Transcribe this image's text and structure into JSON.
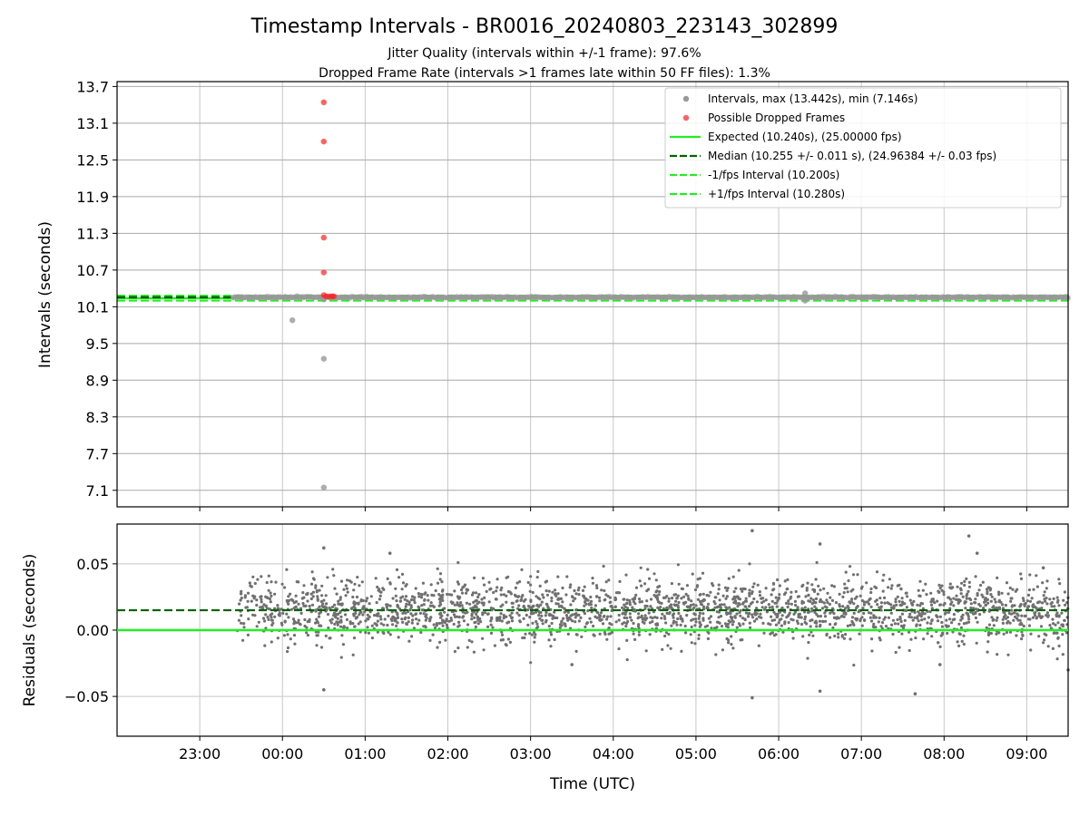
{
  "figure": {
    "title": "Timestamp Intervals - BR0016_20240803_223143_302899",
    "subtitle_1": "Jitter Quality (intervals within +/-1 frame): 97.6%",
    "subtitle_2": "Dropped Frame Rate (intervals >1 frames late within 50 FF files): 1.3%"
  },
  "colors": {
    "intervals": "#999999",
    "dropped": "#ff2020",
    "expected": "#22ee22",
    "median": "#006400",
    "residuals": "#707070"
  },
  "chart_data": [
    {
      "type": "scatter",
      "panel": "intervals",
      "xlabel": "",
      "ylabel": "Intervals (seconds)",
      "x_range_hours": [
        -2.0,
        9.5
      ],
      "ylim": [
        6.83,
        13.78
      ],
      "y_ticks": [
        7.1,
        7.7,
        8.3,
        8.9,
        9.5,
        10.1,
        10.7,
        11.3,
        11.9,
        12.5,
        13.1,
        13.7
      ],
      "y_tick_labels": [
        "7.1",
        "7.7",
        "8.3",
        "8.9",
        "9.5",
        "10.1",
        "10.7",
        "11.3",
        "11.9",
        "12.5",
        "13.1",
        "13.7"
      ],
      "grid": true,
      "legend_position": "top-right",
      "legend": [
        {
          "key": "intervals",
          "label": "Intervals, max (13.442s), min (7.146s)"
        },
        {
          "key": "dropped",
          "label": "Possible Dropped Frames"
        },
        {
          "key": "expected",
          "label": "Expected (10.240s), (25.00000 fps)"
        },
        {
          "key": "median",
          "label": "Median (10.255 +/- 0.011 s), (24.96384 +/- 0.03 fps)"
        },
        {
          "key": "minus",
          "label": "-1/fps Interval (10.200s)"
        },
        {
          "key": "plus",
          "label": "+1/fps Interval (10.280s)"
        }
      ],
      "lines": {
        "expected": 10.24,
        "median": 10.255,
        "minus_fps": 10.2,
        "plus_fps": 10.28
      },
      "series_start_hour": -0.6,
      "series_end_hour": 9.5,
      "baseline": 10.255,
      "outliers": [
        {
          "hour": 0.12,
          "value": 9.88,
          "kind": "interval"
        },
        {
          "hour": 0.5,
          "value": 9.25,
          "kind": "interval"
        },
        {
          "hour": 0.5,
          "value": 7.146,
          "kind": "interval"
        },
        {
          "hour": 0.5,
          "value": 10.22,
          "kind": "interval"
        },
        {
          "hour": 6.32,
          "value": 10.32,
          "kind": "interval"
        },
        {
          "hour": 6.32,
          "value": 10.2,
          "kind": "interval"
        },
        {
          "hour": 0.5,
          "value": 13.442,
          "kind": "dropped"
        },
        {
          "hour": 0.5,
          "value": 12.8,
          "kind": "dropped"
        },
        {
          "hour": 0.5,
          "value": 11.23,
          "kind": "dropped"
        },
        {
          "hour": 0.5,
          "value": 10.66,
          "kind": "dropped"
        },
        {
          "hour": 0.5,
          "value": 10.29,
          "kind": "dropped"
        },
        {
          "hour": 0.53,
          "value": 10.27,
          "kind": "dropped"
        },
        {
          "hour": 0.57,
          "value": 10.27,
          "kind": "dropped"
        },
        {
          "hour": 0.6,
          "value": 10.27,
          "kind": "dropped"
        },
        {
          "hour": 0.62,
          "value": 10.27,
          "kind": "dropped"
        }
      ]
    },
    {
      "type": "scatter",
      "panel": "residuals",
      "xlabel": "Time (UTC)",
      "ylabel": "Residuals (seconds)",
      "x_range_hours": [
        -2.0,
        9.5
      ],
      "ylim": [
        -0.08,
        0.08
      ],
      "y_ticks": [
        -0.05,
        0.0,
        0.05
      ],
      "y_tick_labels": [
        "−0.05",
        "0.00",
        "0.05"
      ],
      "x_ticks": [
        -1.0,
        0.0,
        1.0,
        2.0,
        3.0,
        4.0,
        5.0,
        6.0,
        7.0,
        8.0,
        9.0
      ],
      "x_tick_labels": [
        "23:00",
        "00:00",
        "01:00",
        "02:00",
        "03:00",
        "04:00",
        "05:00",
        "06:00",
        "07:00",
        "08:00",
        "09:00"
      ],
      "grid": true,
      "zero_line": 0.0,
      "median_residual": 0.015,
      "series_start_hour": -0.55,
      "series_end_hour": 9.5,
      "point_count": 2400,
      "residual_mean": 0.015,
      "residual_spread": 0.012,
      "outliers": [
        {
          "hour": 5.68,
          "value": 0.075
        },
        {
          "hour": 8.3,
          "value": 0.071
        },
        {
          "hour": 0.5,
          "value": -0.045
        },
        {
          "hour": 5.68,
          "value": -0.051
        },
        {
          "hour": 6.5,
          "value": -0.046
        },
        {
          "hour": 7.65,
          "value": -0.048
        },
        {
          "hour": 0.5,
          "value": 0.062
        },
        {
          "hour": 1.3,
          "value": 0.058
        },
        {
          "hour": 6.5,
          "value": 0.065
        },
        {
          "hour": 8.4,
          "value": 0.058
        },
        {
          "hour": 9.2,
          "value": 0.047
        },
        {
          "hour": 3.5,
          "value": -0.026
        },
        {
          "hour": 7.95,
          "value": -0.026
        },
        {
          "hour": 9.5,
          "value": -0.03
        }
      ]
    }
  ]
}
